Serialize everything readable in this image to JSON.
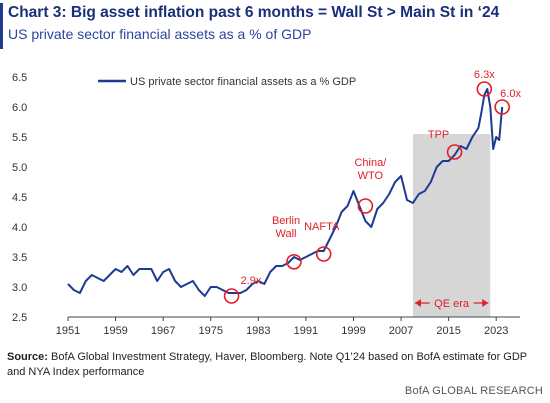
{
  "header": {
    "title": "Chart 3: Big asset inflation past 6 months = Wall St > Main St in ‘24",
    "subtitle": "US private sector financial assets as a % of GDP"
  },
  "footer": {
    "source_label": "Source:",
    "source_text": "BofA Global Investment Strategy, Haver, Bloomberg. Note Q1’24 based on BofA estimate for GDP and NYA Index performance",
    "brand": "BofA GLOBAL RESEARCH"
  },
  "chart_data": {
    "type": "line",
    "title": "",
    "legend": {
      "label": "US private sector financial assets as a % GDP",
      "placement": "top-left"
    },
    "xlim": [
      1951,
      2027
    ],
    "ylim": [
      2.5,
      6.5
    ],
    "x_ticks": [
      "1951",
      "1959",
      "1967",
      "1975",
      "1983",
      "1991",
      "1999",
      "2007",
      "2015",
      "2023"
    ],
    "y_ticks": [
      "2.5",
      "3.0",
      "3.5",
      "4.0",
      "4.5",
      "5.0",
      "5.5",
      "6.0",
      "6.5"
    ],
    "series": [
      {
        "name": "US private sector financial assets as a % GDP",
        "color": "#1f3a93",
        "x": [
          1951,
          1952,
          1953,
          1954,
          1955,
          1956,
          1957,
          1958,
          1959,
          1960,
          1961,
          1962,
          1963,
          1964,
          1965,
          1966,
          1967,
          1968,
          1969,
          1970,
          1971,
          1972,
          1973,
          1974,
          1975,
          1976,
          1977,
          1978,
          1979,
          1980,
          1981,
          1982,
          1983,
          1984,
          1985,
          1986,
          1987,
          1988,
          1989,
          1990,
          1991,
          1992,
          1993,
          1994,
          1995,
          1996,
          1997,
          1998,
          1999,
          2000,
          2001,
          2002,
          2003,
          2004,
          2005,
          2006,
          2007,
          2008,
          2009,
          2010,
          2011,
          2012,
          2013,
          2014,
          2015,
          2016,
          2017,
          2018,
          2019,
          2020,
          2020.5,
          2021,
          2021.5,
          2022,
          2022.5,
          2023,
          2023.5,
          2024
        ],
        "y": [
          3.05,
          2.95,
          2.9,
          3.1,
          3.2,
          3.15,
          3.1,
          3.2,
          3.3,
          3.25,
          3.35,
          3.2,
          3.3,
          3.3,
          3.3,
          3.1,
          3.25,
          3.3,
          3.1,
          3.0,
          3.05,
          3.1,
          2.95,
          2.85,
          3.0,
          3.0,
          2.95,
          2.9,
          2.9,
          2.9,
          2.95,
          3.05,
          3.1,
          3.05,
          3.25,
          3.35,
          3.35,
          3.4,
          3.5,
          3.45,
          3.5,
          3.55,
          3.6,
          3.6,
          3.8,
          4.0,
          4.25,
          4.35,
          4.6,
          4.35,
          4.1,
          4.0,
          4.3,
          4.4,
          4.55,
          4.75,
          4.85,
          4.45,
          4.4,
          4.55,
          4.6,
          4.75,
          5.0,
          5.1,
          5.1,
          5.2,
          5.35,
          5.3,
          5.5,
          5.65,
          5.9,
          6.2,
          6.3,
          6.0,
          5.3,
          5.5,
          5.45,
          6.0
        ]
      }
    ],
    "shaded_region": {
      "label": "QE era",
      "x_start": 2009,
      "x_end": 2022
    },
    "annotations": [
      {
        "text": "2.9x",
        "x": 1978.5,
        "y": 2.85,
        "color": "#e01f26"
      },
      {
        "text": "Berlin Wall",
        "x": 1989,
        "y": 3.42,
        "color": "#e01f26"
      },
      {
        "text": "NAFTA",
        "x": 1994,
        "y": 3.55,
        "color": "#e01f26"
      },
      {
        "text": "China/ WTO",
        "x": 2001,
        "y": 4.35,
        "color": "#e01f26"
      },
      {
        "text": "TPP",
        "x": 2016,
        "y": 5.25,
        "color": "#e01f26"
      },
      {
        "text": "6.3x",
        "x": 2021,
        "y": 6.3,
        "color": "#e01f26"
      },
      {
        "text": "6.0x",
        "x": 2024,
        "y": 6.0,
        "color": "#e01f26"
      }
    ]
  }
}
